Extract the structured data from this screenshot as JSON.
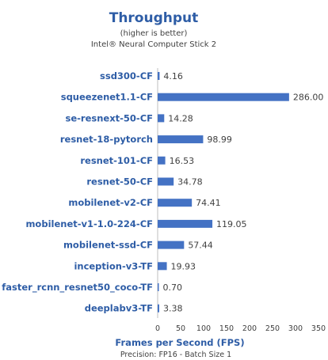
{
  "chart_data": {
    "type": "bar",
    "orientation": "horizontal",
    "title": "Throughput",
    "subtitle_lines": [
      "(higher is better)",
      "Intel® Neural Computer Stick 2"
    ],
    "xlabel": "Frames per Second (FPS)",
    "footnote": "Precision: FP16 - Batch Size 1",
    "categories": [
      "ssd300-CF",
      "squeezenet1.1-CF",
      "se-resnext-50-CF",
      "resnet-18-pytorch",
      "resnet-101-CF",
      "resnet-50-CF",
      "mobilenet-v2-CF",
      "mobilenet-v1-1.0-224-CF",
      "mobilenet-ssd-CF",
      "inception-v3-TF",
      "faster_rcnn_resnet50_coco-TF",
      "deeplabv3-TF"
    ],
    "values": [
      4.16,
      286.0,
      14.28,
      98.99,
      16.53,
      34.78,
      74.41,
      119.05,
      57.44,
      19.93,
      0.7,
      3.38
    ],
    "value_labels": [
      "4.16",
      "286.00",
      "14.28",
      "98.99",
      "16.53",
      "34.78",
      "74.41",
      "119.05",
      "57.44",
      "19.93",
      "0.70",
      "3.38"
    ],
    "xlim": [
      0,
      350
    ],
    "xticks": [
      0,
      50,
      100,
      150,
      200,
      250,
      300,
      350
    ],
    "grid": false,
    "colors": {
      "bar": "#4472c4",
      "title": "#2e5da6",
      "category": "#2e5da6",
      "text": "#404040",
      "axis": "#bfbfbf"
    }
  }
}
